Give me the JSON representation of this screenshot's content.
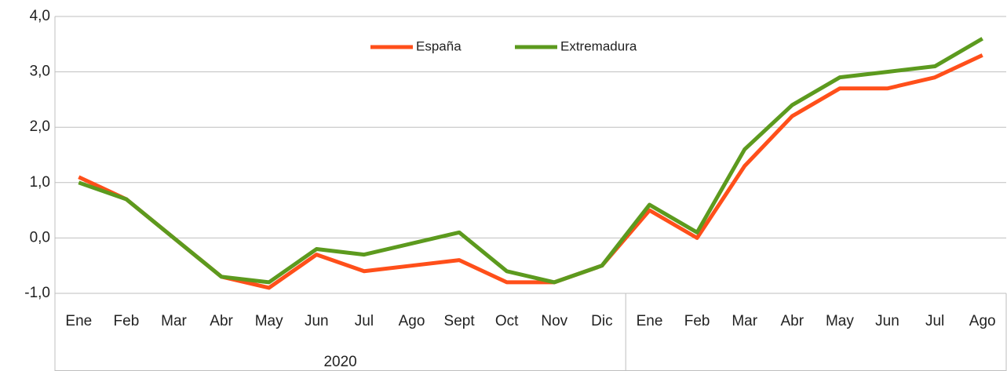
{
  "chart_data": {
    "type": "line",
    "category_groups": [
      {
        "name": "2020",
        "categories": [
          "Ene",
          "Feb",
          "Mar",
          "Abr",
          "May",
          "Jun",
          "Jul",
          "Ago",
          "Sept",
          "Oct",
          "Nov",
          "Dic"
        ]
      },
      {
        "name": null,
        "categories": [
          "Ene",
          "Feb",
          "Mar",
          "Abr",
          "May",
          "Jun",
          "Jul",
          "Ago"
        ]
      }
    ],
    "series": [
      {
        "name": "España",
        "color": "#ff4f1a",
        "values": [
          1.1,
          0.7,
          0.0,
          -0.7,
          -0.9,
          -0.3,
          -0.6,
          -0.5,
          -0.4,
          -0.8,
          -0.8,
          -0.5,
          0.5,
          0.0,
          1.3,
          2.2,
          2.7,
          2.7,
          2.9,
          3.3
        ]
      },
      {
        "name": "Extremadura",
        "color": "#5c9a1e",
        "values": [
          1.0,
          0.7,
          0.0,
          -0.7,
          -0.8,
          -0.2,
          -0.3,
          -0.1,
          0.1,
          -0.6,
          -0.8,
          -0.5,
          0.6,
          0.1,
          1.6,
          2.4,
          2.9,
          3.0,
          3.1,
          3.6
        ]
      }
    ],
    "ylim": [
      -1,
      4
    ],
    "yticks": [
      {
        "value": -1,
        "label": "-1,0"
      },
      {
        "value": 0,
        "label": "0,0"
      },
      {
        "value": 1,
        "label": "1,0"
      },
      {
        "value": 2,
        "label": "2,0"
      },
      {
        "value": 3,
        "label": "3,0"
      },
      {
        "value": 4,
        "label": "4,0"
      }
    ],
    "grid": true,
    "legend": "top"
  }
}
